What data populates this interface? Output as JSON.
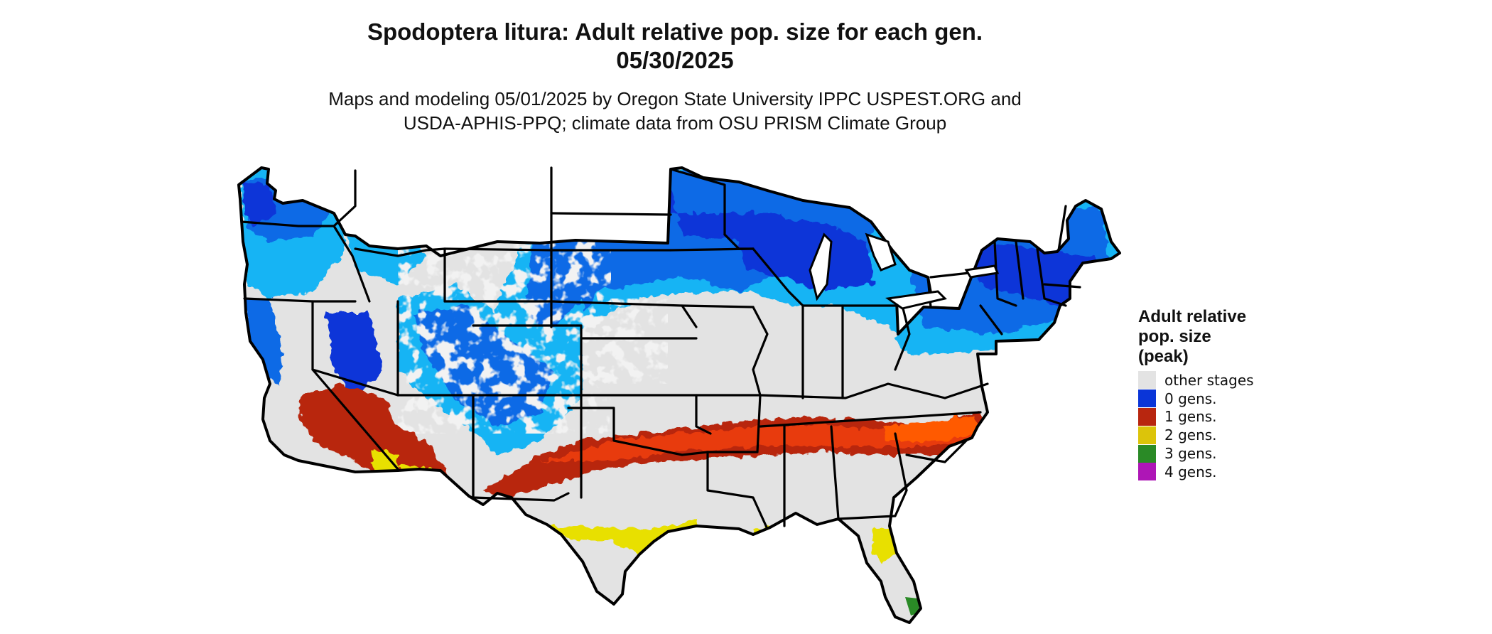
{
  "header": {
    "title_line1": "Spodoptera litura: Adult relative pop. size for each gen.",
    "title_line2": "05/30/2025",
    "subtitle_line1": "Maps and modeling 05/01/2025 by Oregon State University IPPC USPEST.ORG and",
    "subtitle_line2": "USDA-APHIS-PPQ; climate data from OSU PRISM Climate Group"
  },
  "legend": {
    "title_line1": "Adult relative",
    "title_line2": "pop. size",
    "title_line3": "(peak)",
    "items": [
      {
        "label": "other stages",
        "color": "#e3e3e3"
      },
      {
        "label": "0 gens.",
        "color": "#0a35d8"
      },
      {
        "label": "1 gens.",
        "color": "#b8260f"
      },
      {
        "label": "2 gens.",
        "color": "#dcc40a"
      },
      {
        "label": "3 gens.",
        "color": "#2a8a26"
      },
      {
        "label": "4 gens.",
        "color": "#ae16b6"
      }
    ]
  },
  "map": {
    "land_color": "#e3e3e3",
    "border_color": "#000000",
    "cold_colors": [
      "#0a35d8",
      "#0c6ae6",
      "#14b4f4"
    ],
    "warm_colors": [
      "#b8260f",
      "#e83a0c",
      "#ff5a00"
    ],
    "gen2_color": "#e8e000",
    "gen3_color": "#2a8a26"
  }
}
